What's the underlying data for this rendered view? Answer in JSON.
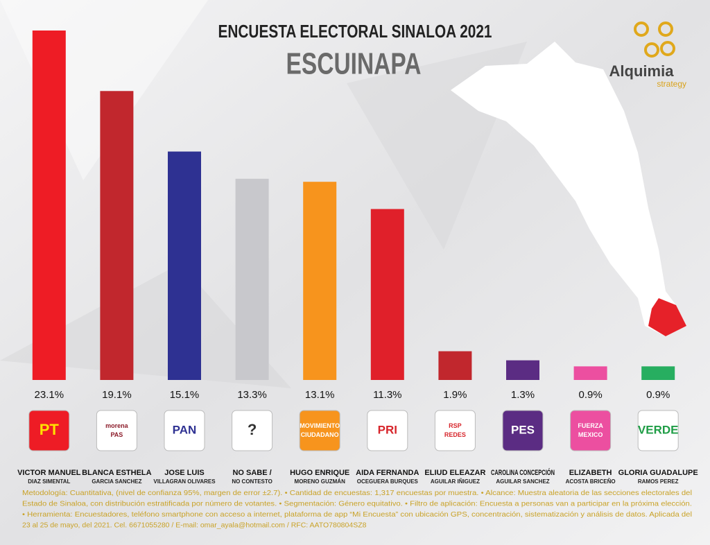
{
  "chart_data": {
    "type": "bar",
    "title": "ENCUESTA ELECTORAL SINALOA 2021",
    "subtitle": "ESCUINAPA",
    "brand": "Alquimia",
    "brand_sub": "strategy",
    "categories": [
      "VICTOR MANUEL",
      "BLANCA ESTHELA",
      "JOSE LUIS",
      "NO SABE /",
      "HUGO ENRIQUE",
      "AIDA FERNANDA",
      "ELIUD ELEAZAR",
      "CAROLINA CONCEPCIÓN",
      "ELIZABETH",
      "GLORIA GUADALUPE"
    ],
    "category_sublabels": [
      "DIAZ SIMENTAL",
      "GARCIA SANCHEZ",
      "VILLAGRAN OLIVARES",
      "NO CONTESTO",
      "MORENO GUZMÁN",
      "OCEGUERA BURQUES",
      "AGUILAR IÑIGUEZ",
      "AGUILAR SANCHEZ",
      "ACOSTA BRICEÑO",
      "RAMOS PEREZ"
    ],
    "party_logos": [
      [
        "PT"
      ],
      [
        "morena",
        "PAS"
      ],
      [
        "PAN"
      ],
      [
        "?"
      ],
      [
        "MOVIMIENTO",
        "CIUDADANO"
      ],
      [
        "PRI"
      ],
      [
        "RSP",
        "REDES"
      ],
      [
        "PES"
      ],
      [
        "FUERZA",
        "MEXICO"
      ],
      [
        "VERDE"
      ]
    ],
    "values": [
      23.1,
      19.1,
      15.1,
      13.3,
      13.1,
      11.3,
      1.9,
      1.3,
      0.9,
      0.9
    ],
    "value_labels": [
      "23.1%",
      "19.1%",
      "15.1%",
      "13.3%",
      "13.1%",
      "11.3%",
      "1.9%",
      "1.3%",
      "0.9%",
      "0.9%"
    ],
    "colors": [
      "#ee1c25",
      "#c1272d",
      "#2e3192",
      "#c8c8cc",
      "#f7941d",
      "#e0202a",
      "#c1272d",
      "#5b2c83",
      "#ec4fa0",
      "#27ae60"
    ],
    "footnote": [
      "Metodología: Cuantitativa, (nivel de confianza 95%, margen de error ±2.7). • Cantidad de encuestas: 1,317 encuestas por muestra. • Alcance: Muestra aleatoria de las secciones electorales del",
      "Estado de Sinaloa, con distribución estratificada por número de votantes. • Segmentación: Género equitativo. • Filtro de aplicación: Encuesta a personas van a participar en la próxima elección.",
      "• Herramienta: Encuestadores, teléfono smartphone con acceso a internet, plataforma de app “Mi Encuesta” con ubicación GPS, concentración, sistematización y análisis de datos. Aplicada del",
      "23 al 25 de mayo, del 2021. Cel. 6671055280 / E-mail: omar_ayala@hotmail.com / RFC: AATO780804SZ8"
    ]
  }
}
